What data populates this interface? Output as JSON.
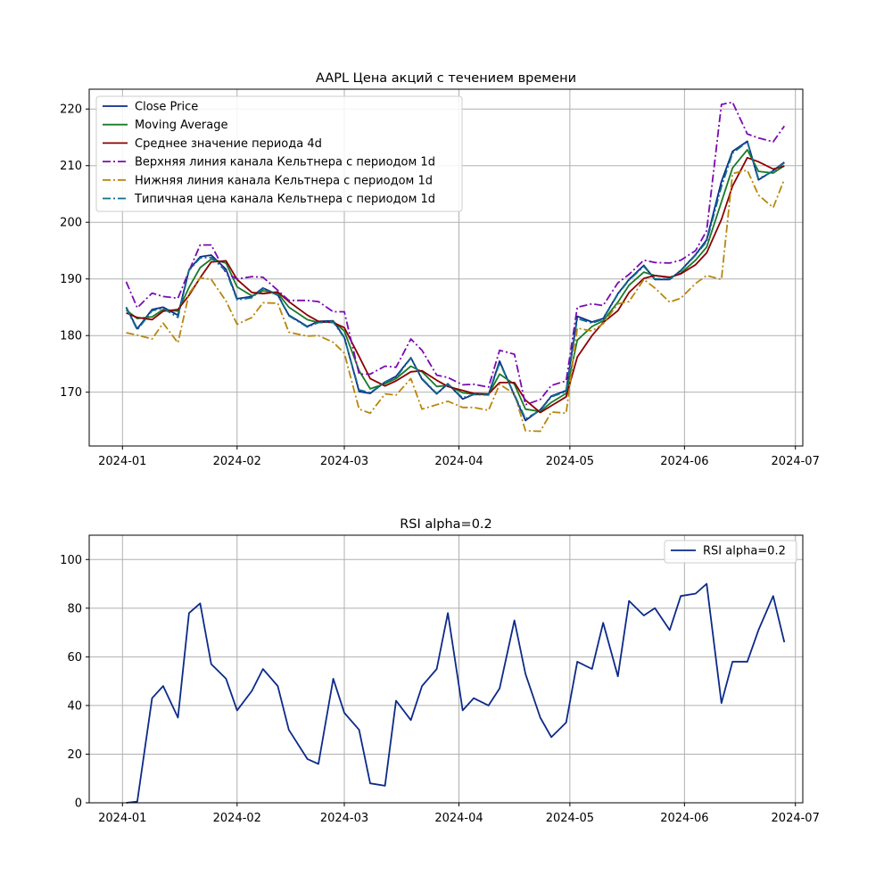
{
  "chart_data": [
    {
      "type": "line",
      "title": "AAPL Цена акций с течением времени",
      "xlabel": "",
      "ylabel": "",
      "x_ticks": [
        "2024-01",
        "2024-02",
        "2024-03",
        "2024-04",
        "2024-05",
        "2024-06",
        "2024-07"
      ],
      "xlim": [
        "2023-12-23",
        "2024-07-03"
      ],
      "y_ticks": [
        "170",
        "180",
        "190",
        "200",
        "210",
        "220"
      ],
      "ylim": [
        160.5,
        223.5
      ],
      "grid": true,
      "legend": "upper left",
      "x": [
        "2024-01-02",
        "2024-01-05",
        "2024-01-09",
        "2024-01-12",
        "2024-01-16",
        "2024-01-19",
        "2024-01-22",
        "2024-01-25",
        "2024-01-29",
        "2024-02-01",
        "2024-02-05",
        "2024-02-08",
        "2024-02-12",
        "2024-02-15",
        "2024-02-20",
        "2024-02-23",
        "2024-02-27",
        "2024-03-01",
        "2024-03-05",
        "2024-03-08",
        "2024-03-12",
        "2024-03-15",
        "2024-03-19",
        "2024-03-22",
        "2024-03-26",
        "2024-03-29",
        "2024-04-02",
        "2024-04-05",
        "2024-04-09",
        "2024-04-12",
        "2024-04-16",
        "2024-04-19",
        "2024-04-23",
        "2024-04-26",
        "2024-04-30",
        "2024-05-03",
        "2024-05-07",
        "2024-05-10",
        "2024-05-14",
        "2024-05-17",
        "2024-05-21",
        "2024-05-24",
        "2024-05-28",
        "2024-05-31",
        "2024-06-04",
        "2024-06-07",
        "2024-06-11",
        "2024-06-14",
        "2024-06-18",
        "2024-06-21",
        "2024-06-25",
        "2024-06-28"
      ],
      "series": [
        {
          "name": "Close Price",
          "color": "#0c2a8a",
          "dash": "solid",
          "values": [
            185.0,
            181.2,
            184.6,
            185.0,
            183.6,
            191.6,
            193.9,
            194.2,
            191.7,
            186.5,
            186.9,
            188.4,
            187.2,
            183.6,
            181.6,
            182.5,
            182.6,
            179.7,
            170.1,
            169.8,
            171.8,
            172.8,
            176.1,
            172.3,
            169.7,
            171.5,
            168.8,
            169.6,
            169.6,
            175.5,
            169.4,
            165.0,
            166.9,
            169.3,
            170.3,
            183.4,
            182.4,
            183.0,
            187.4,
            189.9,
            192.4,
            189.9,
            189.9,
            191.5,
            194.3,
            196.9,
            207.2,
            212.5,
            214.3,
            207.5,
            209.1,
            210.6
          ]
        },
        {
          "name": "Moving Average",
          "color": "#1a7a2a",
          "dash": "solid",
          "values": [
            184.5,
            183.0,
            183.3,
            184.6,
            184.3,
            188.5,
            192.0,
            193.5,
            192.8,
            188.6,
            187.0,
            187.9,
            187.5,
            185.0,
            182.8,
            182.3,
            182.5,
            180.8,
            173.8,
            170.6,
            171.5,
            172.4,
            174.6,
            173.6,
            171.0,
            171.2,
            169.9,
            169.7,
            169.6,
            173.2,
            171.4,
            167.0,
            166.6,
            168.2,
            169.8,
            179.2,
            181.6,
            182.6,
            185.9,
            188.9,
            191.2,
            190.6,
            190.2,
            191.0,
            193.3,
            195.6,
            203.6,
            209.6,
            212.8,
            209.0,
            208.7,
            210.0
          ]
        },
        {
          "name": "Среднее значение периода 4d",
          "color": "#8b0000",
          "dash": "solid",
          "values": [
            184.0,
            183.2,
            182.8,
            184.3,
            184.6,
            187.1,
            190.2,
            193.0,
            193.2,
            189.9,
            187.6,
            187.4,
            187.7,
            186.0,
            183.6,
            182.5,
            182.3,
            181.4,
            176.3,
            172.4,
            171.1,
            172.0,
            173.6,
            173.8,
            172.1,
            171.0,
            170.3,
            169.8,
            169.7,
            171.7,
            171.7,
            168.6,
            166.4,
            167.6,
            169.2,
            176.2,
            180.0,
            182.3,
            184.4,
            187.6,
            190.1,
            190.6,
            190.3,
            190.9,
            192.5,
            194.6,
            200.5,
            206.4,
            211.4,
            210.7,
            209.4,
            209.9
          ]
        },
        {
          "name": "Верхняя линия канала Кельтнера с периодом 1d",
          "color": "#7b0bb0",
          "dash": "dashdot",
          "values": [
            189.5,
            184.9,
            187.5,
            186.9,
            186.6,
            191.4,
            196.0,
            196.0,
            191.0,
            190.0,
            190.4,
            190.3,
            188.0,
            186.2,
            186.2,
            186.0,
            184.2,
            184.2,
            173.2,
            173.2,
            174.6,
            174.4,
            179.4,
            177.4,
            173.0,
            172.6,
            171.3,
            171.4,
            170.9,
            177.4,
            176.7,
            167.8,
            168.7,
            171.2,
            172.0,
            185.0,
            185.6,
            185.3,
            189.3,
            190.8,
            193.3,
            192.9,
            192.8,
            193.3,
            195.0,
            198.5,
            220.8,
            221.2,
            215.6,
            214.9,
            214.2,
            217.0
          ]
        },
        {
          "name": "Нижняя линия канала Кельтнера с периодом 1d",
          "color": "#b8860b",
          "dash": "dashdot",
          "values": [
            180.5,
            180.1,
            179.4,
            182.2,
            178.7,
            187.4,
            190.2,
            189.9,
            186.1,
            182.0,
            183.2,
            185.8,
            185.7,
            180.6,
            179.9,
            180.0,
            178.8,
            176.9,
            167.0,
            166.3,
            169.7,
            169.5,
            172.4,
            167.0,
            167.8,
            168.4,
            167.3,
            167.3,
            166.8,
            171.4,
            169.7,
            163.2,
            163.1,
            166.5,
            166.3,
            181.3,
            180.8,
            182.1,
            185.6,
            186.0,
            189.9,
            188.4,
            185.9,
            186.6,
            189.2,
            190.6,
            189.9,
            208.6,
            209.2,
            204.8,
            202.6,
            207.6
          ]
        },
        {
          "name": "Типичная цена канала Кельтнера с периодом 1d",
          "color": "#0f6f8a",
          "dash": "dashdot",
          "values": [
            184.9,
            181.0,
            184.4,
            184.8,
            183.2,
            191.5,
            193.7,
            193.8,
            191.4,
            186.3,
            186.7,
            188.3,
            187.1,
            183.5,
            181.5,
            182.3,
            182.4,
            179.6,
            170.4,
            169.9,
            171.8,
            172.6,
            176.0,
            172.4,
            169.8,
            171.4,
            169.0,
            169.6,
            169.5,
            175.2,
            169.6,
            165.3,
            166.8,
            169.2,
            170.1,
            183.0,
            182.2,
            182.9,
            187.3,
            189.8,
            192.2,
            190.0,
            190.0,
            191.4,
            194.2,
            196.6,
            206.3,
            212.2,
            214.2,
            207.7,
            209.0,
            210.5
          ]
        }
      ]
    },
    {
      "type": "line",
      "title": "RSI alpha=0.2",
      "xlabel": "",
      "ylabel": "",
      "x_ticks": [
        "2024-01",
        "2024-02",
        "2024-03",
        "2024-04",
        "2024-05",
        "2024-06",
        "2024-07"
      ],
      "xlim": [
        "2023-12-23",
        "2024-07-03"
      ],
      "y_ticks": [
        "0",
        "20",
        "40",
        "60",
        "80",
        "100"
      ],
      "ylim": [
        0,
        110
      ],
      "grid": true,
      "legend": "upper right",
      "x": [
        "2024-01-02",
        "2024-01-05",
        "2024-01-09",
        "2024-01-12",
        "2024-01-16",
        "2024-01-19",
        "2024-01-22",
        "2024-01-25",
        "2024-01-29",
        "2024-02-01",
        "2024-02-05",
        "2024-02-08",
        "2024-02-12",
        "2024-02-15",
        "2024-02-20",
        "2024-02-23",
        "2024-02-27",
        "2024-03-01",
        "2024-03-05",
        "2024-03-08",
        "2024-03-12",
        "2024-03-15",
        "2024-03-19",
        "2024-03-22",
        "2024-03-26",
        "2024-03-29",
        "2024-04-02",
        "2024-04-05",
        "2024-04-09",
        "2024-04-12",
        "2024-04-16",
        "2024-04-19",
        "2024-04-23",
        "2024-04-26",
        "2024-04-30",
        "2024-05-03",
        "2024-05-07",
        "2024-05-10",
        "2024-05-14",
        "2024-05-17",
        "2024-05-21",
        "2024-05-24",
        "2024-05-28",
        "2024-05-31",
        "2024-06-04",
        "2024-06-07",
        "2024-06-11",
        "2024-06-14",
        "2024-06-18",
        "2024-06-21",
        "2024-06-25",
        "2024-06-28"
      ],
      "series": [
        {
          "name": "RSI alpha=0.2",
          "color": "#0c2a8a",
          "dash": "solid",
          "values": [
            0,
            0.5,
            43,
            48,
            35,
            78,
            82,
            57,
            51,
            38,
            46,
            55,
            48,
            30,
            18,
            16,
            51,
            37,
            30,
            8,
            7,
            42,
            34,
            48,
            55,
            78,
            38,
            43,
            40,
            47,
            75,
            53,
            35,
            27,
            33,
            58,
            55,
            74,
            52,
            83,
            77,
            80,
            71,
            85,
            86,
            90,
            41,
            58,
            58,
            71,
            85,
            66
          ]
        }
      ]
    }
  ]
}
